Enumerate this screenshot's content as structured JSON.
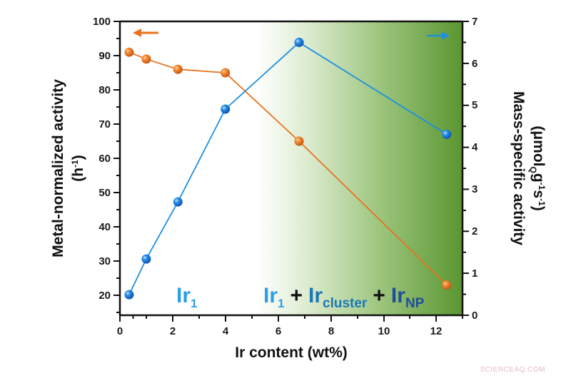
{
  "chart_data": {
    "type": "line",
    "title": "",
    "xlabel": "Ir content (wt%)",
    "ylabel_left": "Metal-normalized activity (h-1)",
    "ylabel_left_line1": "Metal-normalized activity",
    "ylabel_left_line2": "(h",
    "ylabel_left_sup": "-1",
    "ylabel_right": "Mass-specific activity (μmol_Q g-1 s-1)",
    "ylabel_right_line1": "Mass-specific activity",
    "xlim": [
      0,
      13
    ],
    "ylim_left": [
      15,
      100
    ],
    "ylim_right": [
      0,
      7
    ],
    "xticks": [
      0,
      2,
      4,
      6,
      8,
      10,
      12
    ],
    "yticks_left": [
      20,
      30,
      40,
      50,
      60,
      70,
      80,
      90,
      100
    ],
    "yticks_right": [
      0,
      1,
      2,
      3,
      4,
      5,
      6,
      7
    ],
    "grid": false,
    "series": [
      {
        "name": "Metal-normalized activity",
        "axis": "left",
        "color": "#e8731f",
        "x": [
          0.35,
          1.0,
          2.2,
          4.0,
          6.8,
          12.4
        ],
        "values": [
          91,
          89,
          86,
          85,
          65,
          23
        ]
      },
      {
        "name": "Mass-specific activity",
        "axis": "right",
        "color": "#1f8fe0",
        "x": [
          0.35,
          1.0,
          2.2,
          4.0,
          6.8,
          12.4
        ],
        "values": [
          0.49,
          1.34,
          2.7,
          4.91,
          6.5,
          4.31
        ]
      }
    ],
    "annotations": [
      {
        "text": "Ir1",
        "base": "Ir",
        "sub": "1",
        "color": "#2a9ee6"
      },
      {
        "text": "Ir1 + Ircluster + IrNP",
        "parts": [
          {
            "base": "Ir",
            "sub": "1",
            "color": "#2a9ee6"
          },
          {
            "base": " + ",
            "sub": "",
            "color": "#111111"
          },
          {
            "base": "Ir",
            "sub": "cluster",
            "color": "#1c78b8"
          },
          {
            "base": " + ",
            "sub": "",
            "color": "#111111"
          },
          {
            "base": "Ir",
            "sub": "NP",
            "color": "#1f4e9c"
          }
        ]
      },
      {
        "text": "left-arrow (orange → left axis)",
        "color": "#e8731f"
      },
      {
        "text": "right-arrow (blue → right axis)",
        "color": "#1f8fe0"
      }
    ],
    "background_gradient": {
      "from_x": 5.2,
      "to_x": 13,
      "from_color": "#ffffff",
      "to_color": "#5e9a34"
    }
  },
  "labels": {
    "x_axis": "Ir content (wt%)",
    "left_axis_line1": "Metal-normalized activity",
    "left_axis_line2_base": "(h",
    "left_axis_line2_sup": "-1",
    "left_axis_line2_end": ")",
    "right_axis_line1": "Mass-specific activity",
    "right_axis_line2_a": "(μmol",
    "right_axis_line2_sub": "Q",
    "right_axis_line2_b": "g",
    "right_axis_line2_sup1": "-1",
    "right_axis_line2_c": "s",
    "right_axis_line2_sup2": "-1",
    "right_axis_line2_end": ")",
    "region_left_base": "Ir",
    "region_left_sub": "1",
    "region_right_ir1": "Ir",
    "region_right_ir1_sub": "1",
    "plus": "+",
    "region_right_cluster": "Ir",
    "region_right_cluster_sub": "cluster",
    "region_right_np": "Ir",
    "region_right_np_sub": "NP"
  },
  "ticks": {
    "x": [
      "0",
      "2",
      "4",
      "6",
      "8",
      "10",
      "12"
    ],
    "left": [
      "20",
      "30",
      "40",
      "50",
      "60",
      "70",
      "80",
      "90",
      "100"
    ],
    "right": [
      "0",
      "1",
      "2",
      "3",
      "4",
      "5",
      "6",
      "7"
    ]
  },
  "watermark": "SCIENCEAQ.COM"
}
